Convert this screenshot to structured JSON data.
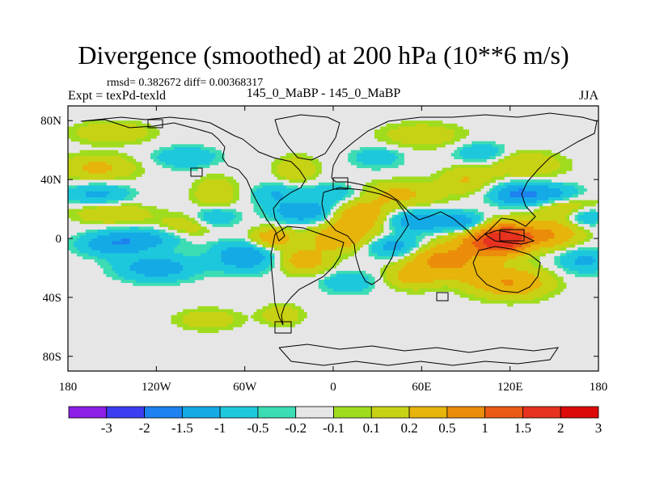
{
  "header": {
    "title": "Divergence (smoothed) at 200 hPa (10**6 m/s)",
    "stats": "rmsd= 0.382672 diff= 0.00368317",
    "expt": "Expt = texPd-texld",
    "center_label": "145_0_MaBP - 145_0_MaBP",
    "season": "JJA"
  },
  "chart_data": {
    "type": "heatmap",
    "title": "Divergence (smoothed) at 200 hPa (10**6 m/s)",
    "x_range": [
      -180,
      180
    ],
    "y_range": [
      -90,
      90
    ],
    "x_ticks": [
      {
        "value": -180,
        "label": "180"
      },
      {
        "value": -120,
        "label": "120W"
      },
      {
        "value": -60,
        "label": "60W"
      },
      {
        "value": 0,
        "label": "0"
      },
      {
        "value": 60,
        "label": "60E"
      },
      {
        "value": 120,
        "label": "120E"
      },
      {
        "value": 180,
        "label": "180"
      }
    ],
    "y_ticks": [
      {
        "value": 80,
        "label": "80N"
      },
      {
        "value": 40,
        "label": "40N"
      },
      {
        "value": 0,
        "label": "0"
      },
      {
        "value": -40,
        "label": "40S"
      },
      {
        "value": -80,
        "label": "80S"
      }
    ],
    "colorbar": {
      "colors": [
        "#8c1ee6",
        "#3c3cf0",
        "#1e82f0",
        "#14aae6",
        "#1ec8dc",
        "#3cdcb4",
        "#e6e6e6",
        "#a0dc1e",
        "#c8d214",
        "#e6b40a",
        "#eb8c0a",
        "#eb5a14",
        "#e6321e",
        "#dc0a0a"
      ],
      "labels": [
        "-3",
        "-2",
        "-1.5",
        "-1",
        "-0.5",
        "-0.2",
        "-0.1",
        "0.1",
        "0.2",
        "0.5",
        "1",
        "1.5",
        "2",
        "3"
      ]
    },
    "field_features": [
      {
        "lon": 117,
        "lat": 0,
        "value": 2.0,
        "spread_lon": 12,
        "spread_lat": 7
      },
      {
        "lon": 100,
        "lat": -3,
        "value": 1.2,
        "spread_lon": 15,
        "spread_lat": 7
      },
      {
        "lon": 145,
        "lat": 2,
        "value": 1.0,
        "spread_lon": 15,
        "spread_lat": 6
      },
      {
        "lon": 160,
        "lat": 20,
        "value": 0.7,
        "spread_lon": 15,
        "spread_lat": 8
      },
      {
        "lon": 120,
        "lat": -30,
        "value": 1.0,
        "spread_lon": 18,
        "spread_lat": 7
      },
      {
        "lon": 90,
        "lat": -20,
        "value": 0.7,
        "spread_lon": 14,
        "spread_lat": 7
      },
      {
        "lon": 70,
        "lat": -13,
        "value": 0.9,
        "spread_lon": 12,
        "spread_lat": 6
      },
      {
        "lon": 55,
        "lat": -25,
        "value": 0.8,
        "spread_lon": 12,
        "spread_lat": 6
      },
      {
        "lon": 18,
        "lat": 15,
        "value": 1.0,
        "spread_lon": 14,
        "spread_lat": 7
      },
      {
        "lon": 5,
        "lat": 0,
        "value": 0.9,
        "spread_lon": 15,
        "spread_lat": 6
      },
      {
        "lon": -42,
        "lat": 0,
        "value": 0.9,
        "spread_lon": 10,
        "spread_lat": 5
      },
      {
        "lon": -20,
        "lat": -15,
        "value": 0.8,
        "spread_lon": 12,
        "spread_lat": 6
      },
      {
        "lon": -80,
        "lat": 30,
        "value": 0.5,
        "spread_lon": 10,
        "spread_lat": 8
      },
      {
        "lon": -100,
        "lat": 8,
        "value": 0.4,
        "spread_lon": 15,
        "spread_lat": 6
      },
      {
        "lon": -150,
        "lat": 17,
        "value": 0.5,
        "spread_lon": 18,
        "spread_lat": 5
      },
      {
        "lon": -160,
        "lat": 48,
        "value": 0.6,
        "spread_lon": 18,
        "spread_lat": 6
      },
      {
        "lon": -25,
        "lat": 47,
        "value": 0.5,
        "spread_lon": 10,
        "spread_lat": 6
      },
      {
        "lon": 45,
        "lat": 30,
        "value": 0.6,
        "spread_lon": 20,
        "spread_lat": 6
      },
      {
        "lon": 90,
        "lat": 40,
        "value": 0.5,
        "spread_lon": 12,
        "spread_lat": 6
      },
      {
        "lon": 130,
        "lat": 50,
        "value": 0.5,
        "spread_lon": 18,
        "spread_lat": 6
      },
      {
        "lon": -150,
        "lat": 72,
        "value": 0.5,
        "spread_lon": 18,
        "spread_lat": 5
      },
      {
        "lon": 60,
        "lat": 70,
        "value": 0.4,
        "spread_lon": 20,
        "spread_lat": 6
      },
      {
        "lon": -85,
        "lat": -55,
        "value": 0.4,
        "spread_lon": 15,
        "spread_lat": 5
      },
      {
        "lon": -35,
        "lat": -52,
        "value": 0.4,
        "spread_lon": 10,
        "spread_lat": 5
      },
      {
        "lon": 125,
        "lat": 30,
        "value": -1.0,
        "spread_lon": 12,
        "spread_lat": 5
      },
      {
        "lon": 150,
        "lat": 30,
        "value": -0.8,
        "spread_lon": 15,
        "spread_lat": 5
      },
      {
        "lon": 170,
        "lat": 15,
        "value": -0.8,
        "spread_lon": 10,
        "spread_lat": 5
      },
      {
        "lon": 60,
        "lat": 12,
        "value": -0.9,
        "spread_lon": 18,
        "spread_lat": 5
      },
      {
        "lon": 40,
        "lat": -5,
        "value": -0.7,
        "spread_lon": 14,
        "spread_lat": 5
      },
      {
        "lon": -20,
        "lat": 18,
        "value": -0.9,
        "spread_lon": 15,
        "spread_lat": 5
      },
      {
        "lon": -60,
        "lat": -12,
        "value": -0.9,
        "spread_lon": 15,
        "spread_lat": 7
      },
      {
        "lon": -130,
        "lat": 0,
        "value": -0.7,
        "spread_lon": 20,
        "spread_lat": 5
      },
      {
        "lon": -150,
        "lat": -5,
        "value": -0.7,
        "spread_lon": 15,
        "spread_lat": 5
      },
      {
        "lon": -120,
        "lat": -20,
        "value": -0.8,
        "spread_lon": 18,
        "spread_lat": 6
      },
      {
        "lon": -160,
        "lat": 30,
        "value": -0.6,
        "spread_lon": 15,
        "spread_lat": 5
      },
      {
        "lon": -80,
        "lat": 15,
        "value": -0.6,
        "spread_lon": 10,
        "spread_lat": 5
      },
      {
        "lon": 0,
        "lat": 30,
        "value": -0.5,
        "spread_lon": 15,
        "spread_lat": 5
      },
      {
        "lon": 90,
        "lat": 10,
        "value": -0.6,
        "spread_lon": 10,
        "spread_lat": 5
      },
      {
        "lon": 170,
        "lat": -15,
        "value": -0.6,
        "spread_lon": 12,
        "spread_lat": 6
      },
      {
        "lon": 10,
        "lat": -30,
        "value": -0.5,
        "spread_lon": 12,
        "spread_lat": 5
      },
      {
        "lon": -100,
        "lat": 55,
        "value": -0.5,
        "spread_lon": 15,
        "spread_lat": 5
      },
      {
        "lon": 100,
        "lat": 58,
        "value": -0.5,
        "spread_lon": 12,
        "spread_lat": 5
      },
      {
        "lon": 30,
        "lat": 55,
        "value": -0.4,
        "spread_lon": 12,
        "spread_lat": 5
      },
      {
        "lon": -40,
        "lat": 30,
        "value": -0.5,
        "spread_lon": 10,
        "spread_lat": 5
      }
    ]
  }
}
